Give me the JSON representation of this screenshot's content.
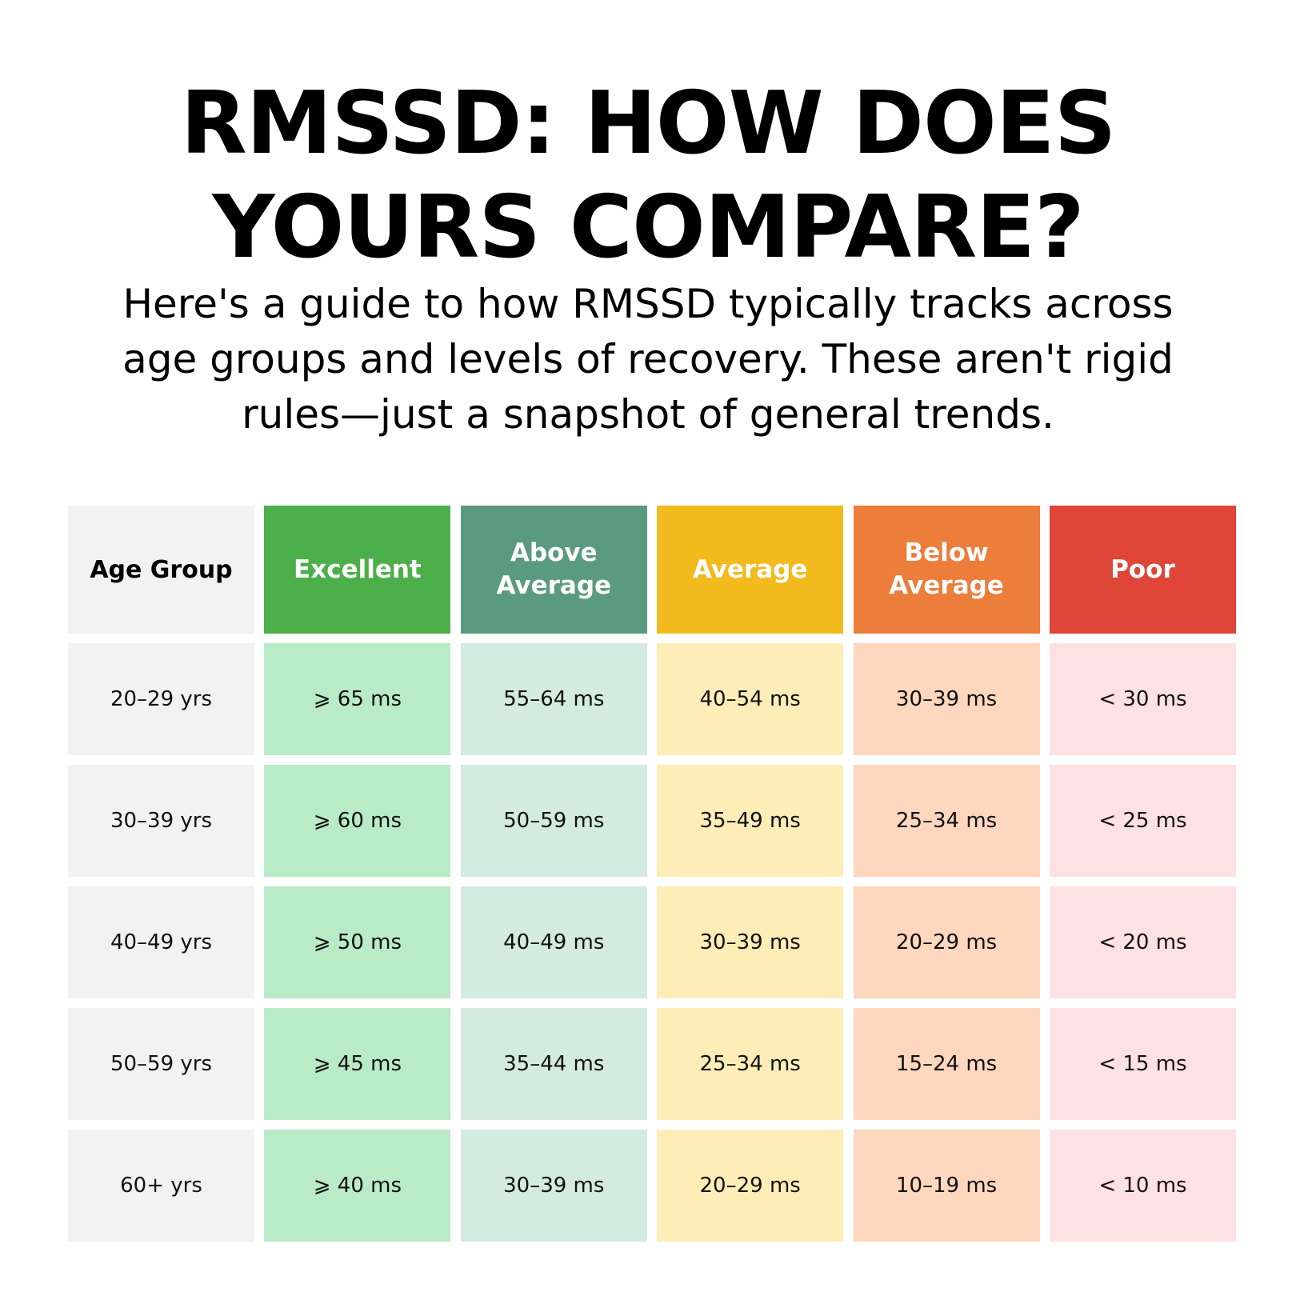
{
  "title": {
    "line1": "RMSSD: HOW DOES",
    "line2": "YOURS COMPARE?"
  },
  "subtitle": {
    "line1": "Here's a guide to how RMSSD typically tracks across",
    "line2": "age groups and levels of recovery. These aren't rigid",
    "line3": "rules—just a snapshot of general trends."
  },
  "colors": {
    "age_header_bg": "#F2F2F2",
    "age_cell_bg": "#F2F2F2",
    "excellent_header": "#4CAF4A",
    "excellent_cell": "#B8EBC6",
    "above_header": "#5A9A81",
    "above_cell": "#D3EBE1",
    "average_header": "#F2BA1C",
    "average_cell": "#FEEDB7",
    "below_header": "#EC7D3A",
    "below_cell": "#FED7BE",
    "poor_header": "#DF4638",
    "poor_cell": "#FDE1E3"
  },
  "table": {
    "headers": [
      "Age Group",
      "Excellent",
      "Above Average",
      "Average",
      "Below Average",
      "Poor"
    ],
    "rows": [
      [
        "20–29 yrs",
        "⩾ 65 ms",
        "55–64 ms",
        "40–54 ms",
        "30–39 ms",
        "< 30 ms"
      ],
      [
        "30–39 yrs",
        "⩾ 60 ms",
        "50–59 ms",
        "35–49 ms",
        "25–34 ms",
        "< 25 ms"
      ],
      [
        "40–49 yrs",
        "⩾ 50 ms",
        "40–49 ms",
        "30–39 ms",
        "20–29 ms",
        "< 20 ms"
      ],
      [
        "50–59 yrs",
        "⩾ 45 ms",
        "35–44 ms",
        "25–34 ms",
        "15–24 ms",
        "< 15 ms"
      ],
      [
        "60+ yrs",
        "⩾ 40 ms",
        "30–39 ms",
        "20–29 ms",
        "10–19 ms",
        "< 10 ms"
      ]
    ]
  }
}
